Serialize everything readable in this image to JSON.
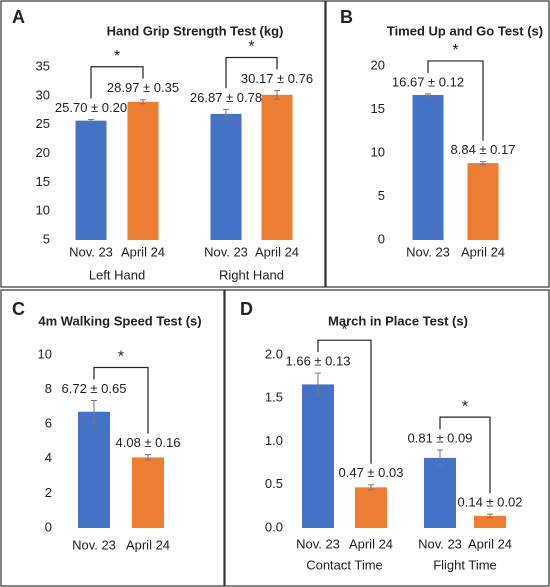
{
  "chart_data": [
    {
      "type": "bar",
      "panel_label": "A",
      "title": "Hand Grip Strength Test (kg)",
      "categories": [
        "Left Hand",
        "Right Hand"
      ],
      "series": [
        {
          "name": "Nov. 23",
          "color": "#4472c4",
          "values": [
            25.7,
            26.87
          ],
          "errors": [
            0.2,
            0.78
          ],
          "value_labels": [
            "25.70 ± 0.20",
            "26.87 ± 0.78"
          ]
        },
        {
          "name": "April 24",
          "color": "#ed7d31",
          "values": [
            28.97,
            30.17
          ],
          "errors": [
            0.35,
            0.76
          ],
          "value_labels": [
            "28.97 ± 0.35",
            "30.17 ± 0.76"
          ]
        }
      ],
      "significance": [
        "*",
        "*"
      ],
      "ylim": [
        5,
        35
      ],
      "yticks": [
        5,
        10,
        15,
        20,
        25,
        30,
        35
      ],
      "grid": false
    },
    {
      "type": "bar",
      "panel_label": "B",
      "title": "Timed Up and Go Test (s)",
      "categories": [
        null
      ],
      "series": [
        {
          "name": "Nov. 23",
          "color": "#4472c4",
          "values": [
            16.67
          ],
          "errors": [
            0.12
          ],
          "value_labels": [
            "16.67 ± 0.12"
          ]
        },
        {
          "name": "April 24",
          "color": "#ed7d31",
          "values": [
            8.84
          ],
          "errors": [
            0.17
          ],
          "value_labels": [
            "8.84 ± 0.17"
          ]
        }
      ],
      "significance": [
        "*"
      ],
      "ylim": [
        0,
        20
      ],
      "yticks": [
        0,
        5,
        10,
        15,
        20
      ],
      "grid": false
    },
    {
      "type": "bar",
      "panel_label": "C",
      "title": "4m Walking Speed Test (s)",
      "categories": [
        null
      ],
      "series": [
        {
          "name": "Nov. 23",
          "color": "#4472c4",
          "values": [
            6.72
          ],
          "errors": [
            0.65
          ],
          "value_labels": [
            "6.72 ± 0.65"
          ]
        },
        {
          "name": "April 24",
          "color": "#ed7d31",
          "values": [
            4.08
          ],
          "errors": [
            0.16
          ],
          "value_labels": [
            "4.08 ± 0.16"
          ]
        }
      ],
      "significance": [
        "*"
      ],
      "ylim": [
        0,
        10
      ],
      "yticks": [
        0,
        2,
        4,
        6,
        8,
        10
      ],
      "grid": false
    },
    {
      "type": "bar",
      "panel_label": "D",
      "title": "March in Place Test (s)",
      "categories": [
        "Contact Time",
        "Flight Time"
      ],
      "series": [
        {
          "name": "Nov. 23",
          "color": "#4472c4",
          "values": [
            1.66,
            0.81
          ],
          "errors": [
            0.13,
            0.09
          ],
          "value_labels": [
            "1.66 ± 0.13",
            "0.81 ± 0.09"
          ]
        },
        {
          "name": "April 24",
          "color": "#ed7d31",
          "values": [
            0.47,
            0.14
          ],
          "errors": [
            0.03,
            0.02
          ],
          "value_labels": [
            "0.47 ± 0.03",
            "0.14 ± 0.02"
          ]
        }
      ],
      "significance": [
        "*",
        "*"
      ],
      "ylim": [
        0,
        2
      ],
      "yticks": [
        {
          "value": 0,
          "label": "0.0"
        },
        0.5,
        {
          "value": 1,
          "label": "1.0"
        },
        1.5,
        {
          "value": 2,
          "label": "2.0"
        }
      ],
      "grid": false
    }
  ]
}
